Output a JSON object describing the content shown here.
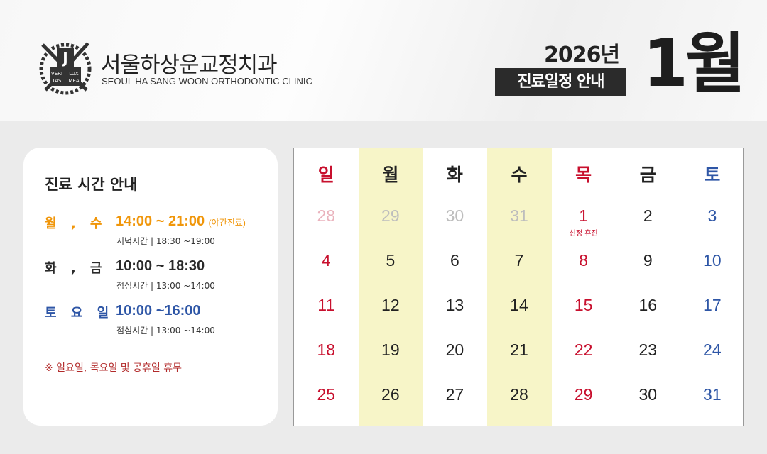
{
  "header": {
    "logo_text": [
      "VERI",
      "TAS",
      "LUX",
      "MEA"
    ],
    "clinic_name": "서울하상운교정치과",
    "clinic_name_en": "SEOUL HA SANG WOON ORTHODONTIC CLINIC",
    "year": "2026년",
    "notice": "진료일정 안내",
    "month": "1월"
  },
  "hours": {
    "title": "진료 시간 안내",
    "rows": [
      {
        "days": "월 , 수",
        "time": "14:00 ~ 21:00",
        "extra": "(야간진료)",
        "sub": "저녁시간 | 18:30 ~19:00",
        "color": "#f0960a"
      },
      {
        "days": "화 , 금",
        "time": "10:00 ~ 18:30",
        "extra": "",
        "sub": "점심시간 | 13:00 ~14:00",
        "color": "#2a2a2a"
      },
      {
        "days": "토 요 일",
        "time": "10:00 ~16:00",
        "extra": "",
        "sub": "점심시간 | 13:00 ~14:00",
        "color": "#2e56a6"
      }
    ],
    "footnote": "※ 일요일, 목요일 및 공휴일 휴무"
  },
  "calendar": {
    "weekdays": [
      "일",
      "월",
      "화",
      "수",
      "목",
      "금",
      "토"
    ],
    "highlight_columns": [
      1,
      3
    ],
    "highlight_color": "#f7f5c8",
    "colors": {
      "holiday": "#c8102e",
      "saturday": "#2e56a6",
      "normal": "#222222",
      "faded": "#bdbdbd",
      "faded_holiday": "#eab3bd"
    },
    "weeks": [
      [
        {
          "d": "28",
          "s": "faded_holiday"
        },
        {
          "d": "29",
          "s": "faded"
        },
        {
          "d": "30",
          "s": "faded"
        },
        {
          "d": "31",
          "s": "faded"
        },
        {
          "d": "1",
          "s": "holiday",
          "note": "신정 휴진"
        },
        {
          "d": "2",
          "s": "normal"
        },
        {
          "d": "3",
          "s": "saturday"
        }
      ],
      [
        {
          "d": "4",
          "s": "holiday"
        },
        {
          "d": "5",
          "s": "normal"
        },
        {
          "d": "6",
          "s": "normal"
        },
        {
          "d": "7",
          "s": "normal"
        },
        {
          "d": "8",
          "s": "holiday"
        },
        {
          "d": "9",
          "s": "normal"
        },
        {
          "d": "10",
          "s": "saturday"
        }
      ],
      [
        {
          "d": "11",
          "s": "holiday"
        },
        {
          "d": "12",
          "s": "normal"
        },
        {
          "d": "13",
          "s": "normal"
        },
        {
          "d": "14",
          "s": "normal"
        },
        {
          "d": "15",
          "s": "holiday"
        },
        {
          "d": "16",
          "s": "normal"
        },
        {
          "d": "17",
          "s": "saturday"
        }
      ],
      [
        {
          "d": "18",
          "s": "holiday"
        },
        {
          "d": "19",
          "s": "normal"
        },
        {
          "d": "20",
          "s": "normal"
        },
        {
          "d": "21",
          "s": "normal"
        },
        {
          "d": "22",
          "s": "holiday"
        },
        {
          "d": "23",
          "s": "normal"
        },
        {
          "d": "24",
          "s": "saturday"
        }
      ],
      [
        {
          "d": "25",
          "s": "holiday"
        },
        {
          "d": "26",
          "s": "normal"
        },
        {
          "d": "27",
          "s": "normal"
        },
        {
          "d": "28",
          "s": "normal"
        },
        {
          "d": "29",
          "s": "holiday"
        },
        {
          "d": "30",
          "s": "normal"
        },
        {
          "d": "31",
          "s": "saturday"
        }
      ]
    ]
  }
}
